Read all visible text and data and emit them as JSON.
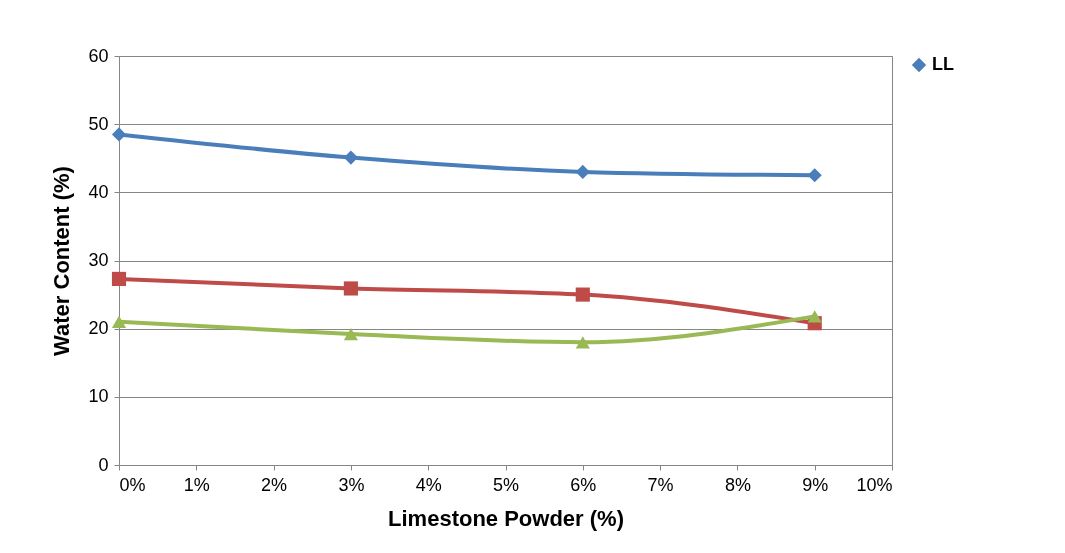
{
  "chart_data": {
    "type": "line",
    "xlabel": "Limestone Powder (%)",
    "ylabel": "Water Content (%)",
    "x": [
      0,
      3,
      6,
      9
    ],
    "series": [
      {
        "name": "LL",
        "color": "#4a7ebb",
        "marker": "diamond",
        "values": [
          48.5,
          45.1,
          43.0,
          42.5
        ]
      },
      {
        "color": "#be4b48",
        "marker": "square",
        "values": [
          27.3,
          25.9,
          25.0,
          20.8
        ]
      },
      {
        "color": "#98b954",
        "marker": "triangle",
        "values": [
          21.0,
          19.2,
          18.0,
          21.8
        ]
      }
    ],
    "xlim": [
      0,
      10
    ],
    "xticks": [
      {
        "value": 0,
        "label": "0%"
      },
      {
        "value": 1,
        "label": "1%"
      },
      {
        "value": 2,
        "label": "2%"
      },
      {
        "value": 3,
        "label": "3%"
      },
      {
        "value": 4,
        "label": "4%"
      },
      {
        "value": 5,
        "label": "5%"
      },
      {
        "value": 6,
        "label": "6%"
      },
      {
        "value": 7,
        "label": "7%"
      },
      {
        "value": 8,
        "label": "8%"
      },
      {
        "value": 9,
        "label": "9%"
      },
      {
        "value": 10,
        "label": "10%"
      }
    ],
    "ylim": [
      0,
      60
    ],
    "yticks": [
      0,
      10,
      20,
      30,
      40,
      50,
      60
    ],
    "grid": "y",
    "legend": "right",
    "line_style": "solid"
  }
}
